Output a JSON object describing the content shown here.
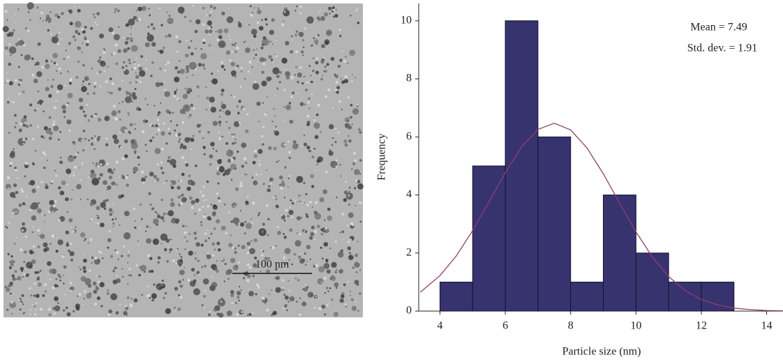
{
  "image": {
    "scale_bar_label": "100 nm"
  },
  "chart_data": {
    "type": "histogram",
    "xlabel": "Particle size (nm)",
    "ylabel": "Frequency",
    "annotations": [
      "Mean = 7.49",
      "Std. dev. = 1.91"
    ],
    "bins": [
      4,
      5,
      6,
      7,
      8,
      9,
      10,
      11,
      12,
      13
    ],
    "values": [
      1,
      5,
      10,
      6,
      1,
      4,
      2,
      1,
      1
    ],
    "color": "#36336f",
    "fit_curve": {
      "color": "#8e3f70",
      "x": [
        3.4,
        4,
        4.5,
        5,
        5.5,
        6,
        6.5,
        7,
        7.5,
        8,
        8.5,
        9,
        9.5,
        10,
        10.5,
        11,
        11.5,
        12,
        12.5,
        13,
        13.5,
        14,
        14.5
      ],
      "values": [
        0.65,
        1.22,
        1.9,
        2.77,
        3.76,
        4.77,
        5.66,
        6.26,
        6.47,
        6.24,
        5.62,
        4.73,
        3.72,
        2.73,
        1.87,
        1.19,
        0.71,
        0.4,
        0.21,
        0.1,
        0.05,
        0.02,
        0.01
      ]
    },
    "xlim": [
      3.35,
      14.5
    ],
    "ylim": [
      0,
      10.5
    ],
    "xticks": [
      4,
      6,
      8,
      10,
      12,
      14
    ],
    "yticks": [
      0,
      2,
      4,
      6,
      8,
      10
    ]
  }
}
